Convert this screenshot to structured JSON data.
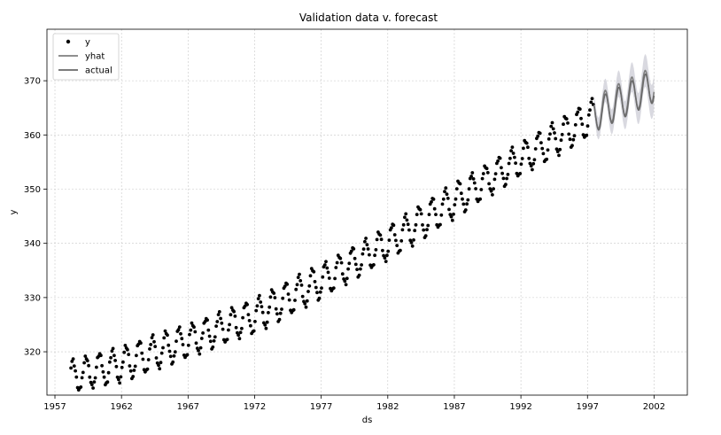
{
  "chart_data": {
    "type": "scatter",
    "title": "Validation data v. forecast",
    "xlabel": "ds",
    "ylabel": "y",
    "xlim": [
      1956.4,
      2004.5
    ],
    "ylim": [
      312.0,
      379.5
    ],
    "x_ticks": [
      1957,
      1962,
      1967,
      1972,
      1977,
      1982,
      1987,
      1992,
      1997,
      2002
    ],
    "x_tick_labels": [
      "1957",
      "1962",
      "1967",
      "1972",
      "1977",
      "1982",
      "1987",
      "1992",
      "1997",
      "2002"
    ],
    "y_ticks": [
      320,
      330,
      340,
      350,
      360,
      370
    ],
    "y_tick_labels": [
      "320",
      "330",
      "340",
      "350",
      "360",
      "370"
    ],
    "grid": true,
    "legend_position": "top-left",
    "legend": [
      {
        "label": "y",
        "marker": "dot",
        "color": "#000000"
      },
      {
        "label": "yhat",
        "marker": "line",
        "color": "#7f7f7f"
      },
      {
        "label": "actual",
        "marker": "line",
        "color": "#6a6a6a"
      }
    ],
    "series": [
      {
        "name": "y",
        "kind": "scatter",
        "color": "#000000",
        "start_year": 1958.2,
        "end_year": 1997.5,
        "step_years": 0.0833,
        "trend_points": [
          [
            1958.2,
            315.4
          ],
          [
            1962.0,
            317.7
          ],
          [
            1967.0,
            322.0
          ],
          [
            1972.0,
            326.6
          ],
          [
            1977.0,
            333.0
          ],
          [
            1982.0,
            340.0
          ],
          [
            1987.0,
            347.8
          ],
          [
            1992.0,
            355.5
          ],
          [
            1997.5,
            363.5
          ]
        ],
        "seasonal_amplitude": 3.0
      },
      {
        "name": "yhat",
        "kind": "line",
        "color": "#7f7f7f",
        "start_year": 1997.5,
        "end_year": 2002.0,
        "trend_points": [
          [
            1997.5,
            364.0
          ],
          [
            2002.0,
            369.5
          ]
        ],
        "seasonal_amplitude": 3.2,
        "uncertainty_halfwidth": 3.2
      },
      {
        "name": "actual",
        "kind": "line",
        "color": "#6a6a6a",
        "start_year": 1997.5,
        "end_year": 2002.0,
        "trend_points": [
          [
            1997.5,
            363.5
          ],
          [
            2002.0,
            369.0
          ]
        ],
        "seasonal_amplitude": 3.0
      }
    ]
  }
}
